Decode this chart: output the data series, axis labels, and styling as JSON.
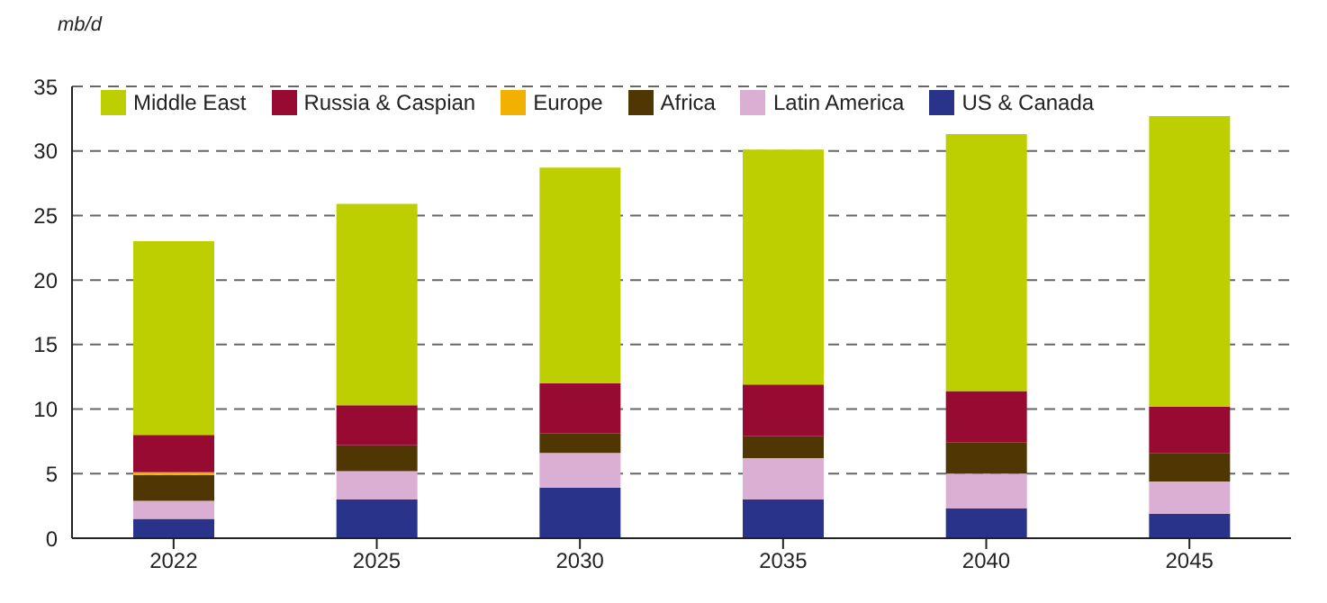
{
  "chart_data": {
    "type": "bar",
    "stacked": true,
    "ylabel": "mb/d",
    "categories": [
      "2022",
      "2025",
      "2030",
      "2035",
      "2040",
      "2045"
    ],
    "series": [
      {
        "name": "US & Canada",
        "color": "#283389",
        "values": [
          1.5,
          3.0,
          3.9,
          3.0,
          2.3,
          1.9
        ]
      },
      {
        "name": "Latin America",
        "color": "#dbafd3",
        "values": [
          1.4,
          2.2,
          2.7,
          3.2,
          2.7,
          2.5
        ]
      },
      {
        "name": "Africa",
        "color": "#4f3603",
        "values": [
          2.0,
          2.0,
          1.5,
          1.7,
          2.4,
          2.2
        ]
      },
      {
        "name": "Europe",
        "color": "#f2b100",
        "values": [
          0.2,
          0,
          0,
          0,
          0,
          0
        ]
      },
      {
        "name": "Russia & Caspian",
        "color": "#970a31",
        "values": [
          2.9,
          3.1,
          3.9,
          4.0,
          4.0,
          3.6
        ]
      },
      {
        "name": "Middle East",
        "color": "#bdcf00",
        "values": [
          15.0,
          15.6,
          16.7,
          18.2,
          19.9,
          22.5
        ]
      }
    ],
    "ylim": [
      0,
      35
    ],
    "yticks": [
      0,
      5,
      10,
      15,
      20,
      25,
      30,
      35
    ],
    "grid": "y",
    "legend": "top"
  }
}
